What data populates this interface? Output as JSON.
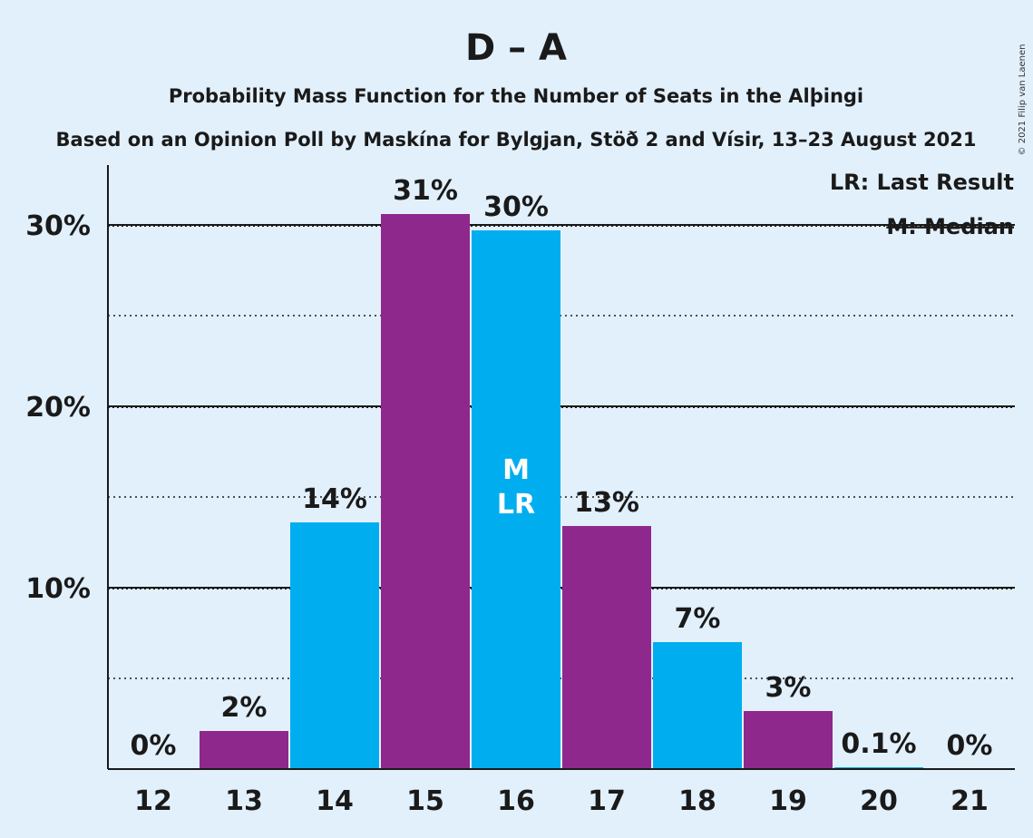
{
  "chart_data": {
    "type": "bar",
    "title": "D – A",
    "subtitle": "Probability Mass Function for the Number of Seats in the Alþingi",
    "subtitle2": "Based on an Opinion Poll by Maskína for Bylgjan, Stöð 2 and Vísir, 13–23 August 2021",
    "categories": [
      "12",
      "13",
      "14",
      "15",
      "16",
      "17",
      "18",
      "19",
      "20",
      "21"
    ],
    "values": [
      0,
      2.1,
      13.6,
      30.6,
      29.7,
      13.4,
      7.0,
      3.2,
      0.1,
      0
    ],
    "data_labels": [
      "0%",
      "2%",
      "14%",
      "31%",
      "30%",
      "13%",
      "7%",
      "3%",
      "0.1%",
      "0%"
    ],
    "ylim": [
      0,
      33.3
    ],
    "yticks": [
      10,
      20,
      30
    ],
    "ytick_labels": [
      "10%",
      "20%",
      "30%"
    ],
    "minor_gridlines": [
      5,
      15,
      25
    ],
    "median_index": 4,
    "last_result_index": 4,
    "median_marker": "M",
    "last_result_marker": "LR",
    "legend": [
      "LR: Last Result",
      "M: Median"
    ],
    "legend_position": "top-right",
    "colors": {
      "purple": "#8e288c",
      "blue": "#00aeef",
      "background": "#e2f0fc",
      "axis": "#1a1a1a"
    }
  },
  "copyright": "© 2021 Filip van Laenen"
}
